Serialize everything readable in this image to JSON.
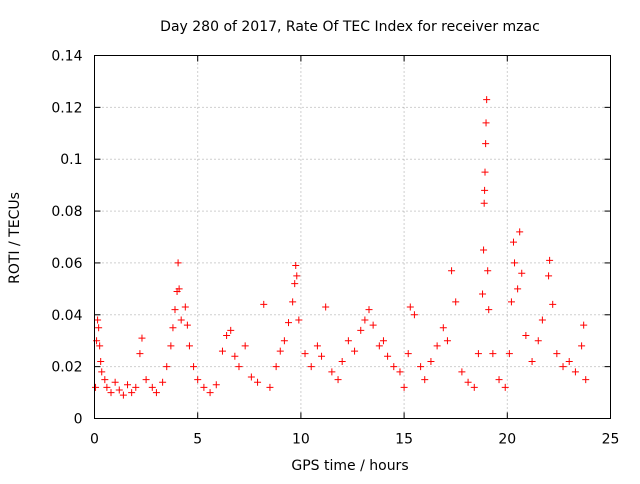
{
  "chart_data": {
    "type": "scatter",
    "title": "Day 280 of 2017, Rate Of TEC Index for receiver mzac",
    "xlabel": "GPS time / hours",
    "ylabel": "ROTI / TECUs",
    "xlim": [
      0,
      25
    ],
    "ylim": [
      0,
      0.14
    ],
    "x_ticks": [
      0,
      5,
      10,
      15,
      20,
      25
    ],
    "x_tick_labels": [
      "0",
      "5",
      "10",
      "15",
      "20",
      "25"
    ],
    "y_ticks": [
      0,
      0.02,
      0.04,
      0.06,
      0.08,
      0.1,
      0.12,
      0.14
    ],
    "y_tick_labels": [
      "0",
      "0.02",
      "0.04",
      "0.06",
      "0.08",
      "0.1",
      "0.12",
      "0.14"
    ],
    "grid": true,
    "marker": "plus",
    "color": "#ff0000",
    "series": [
      {
        "name": "ROTI",
        "points": [
          [
            0.05,
            0.012
          ],
          [
            0.1,
            0.03
          ],
          [
            0.15,
            0.038
          ],
          [
            0.2,
            0.035
          ],
          [
            0.25,
            0.028
          ],
          [
            0.3,
            0.022
          ],
          [
            0.35,
            0.018
          ],
          [
            0.5,
            0.015
          ],
          [
            0.6,
            0.012
          ],
          [
            0.8,
            0.01
          ],
          [
            1.0,
            0.014
          ],
          [
            1.2,
            0.011
          ],
          [
            1.4,
            0.009
          ],
          [
            1.6,
            0.013
          ],
          [
            1.8,
            0.01
          ],
          [
            2.0,
            0.012
          ],
          [
            2.2,
            0.025
          ],
          [
            2.3,
            0.031
          ],
          [
            2.5,
            0.015
          ],
          [
            2.8,
            0.012
          ],
          [
            3.0,
            0.01
          ],
          [
            3.3,
            0.014
          ],
          [
            3.5,
            0.02
          ],
          [
            3.7,
            0.028
          ],
          [
            3.8,
            0.035
          ],
          [
            3.9,
            0.042
          ],
          [
            4.0,
            0.049
          ],
          [
            4.05,
            0.06
          ],
          [
            4.1,
            0.05
          ],
          [
            4.2,
            0.038
          ],
          [
            4.4,
            0.043
          ],
          [
            4.5,
            0.036
          ],
          [
            4.6,
            0.028
          ],
          [
            4.8,
            0.02
          ],
          [
            5.0,
            0.015
          ],
          [
            5.3,
            0.012
          ],
          [
            5.6,
            0.01
          ],
          [
            5.9,
            0.013
          ],
          [
            6.2,
            0.026
          ],
          [
            6.4,
            0.032
          ],
          [
            6.6,
            0.034
          ],
          [
            6.8,
            0.024
          ],
          [
            7.0,
            0.02
          ],
          [
            7.3,
            0.028
          ],
          [
            7.6,
            0.016
          ],
          [
            7.9,
            0.014
          ],
          [
            8.2,
            0.044
          ],
          [
            8.5,
            0.012
          ],
          [
            8.8,
            0.02
          ],
          [
            9.0,
            0.026
          ],
          [
            9.2,
            0.03
          ],
          [
            9.4,
            0.037
          ],
          [
            9.6,
            0.045
          ],
          [
            9.7,
            0.052
          ],
          [
            9.75,
            0.059
          ],
          [
            9.8,
            0.055
          ],
          [
            9.9,
            0.038
          ],
          [
            10.2,
            0.025
          ],
          [
            10.5,
            0.02
          ],
          [
            10.8,
            0.028
          ],
          [
            11.0,
            0.024
          ],
          [
            11.2,
            0.043
          ],
          [
            11.5,
            0.018
          ],
          [
            11.8,
            0.015
          ],
          [
            12.0,
            0.022
          ],
          [
            12.3,
            0.03
          ],
          [
            12.6,
            0.026
          ],
          [
            12.9,
            0.034
          ],
          [
            13.1,
            0.038
          ],
          [
            13.3,
            0.042
          ],
          [
            13.5,
            0.036
          ],
          [
            13.8,
            0.028
          ],
          [
            14.0,
            0.03
          ],
          [
            14.2,
            0.024
          ],
          [
            14.5,
            0.02
          ],
          [
            14.8,
            0.018
          ],
          [
            15.0,
            0.012
          ],
          [
            15.2,
            0.025
          ],
          [
            15.3,
            0.043
          ],
          [
            15.5,
            0.04
          ],
          [
            15.8,
            0.02
          ],
          [
            16.0,
            0.015
          ],
          [
            16.3,
            0.022
          ],
          [
            16.6,
            0.028
          ],
          [
            16.9,
            0.035
          ],
          [
            17.1,
            0.03
          ],
          [
            17.3,
            0.057
          ],
          [
            17.5,
            0.045
          ],
          [
            17.8,
            0.018
          ],
          [
            18.1,
            0.014
          ],
          [
            18.4,
            0.012
          ],
          [
            18.6,
            0.025
          ],
          [
            18.8,
            0.048
          ],
          [
            18.85,
            0.065
          ],
          [
            18.88,
            0.083
          ],
          [
            18.9,
            0.088
          ],
          [
            18.92,
            0.095
          ],
          [
            18.95,
            0.106
          ],
          [
            18.97,
            0.114
          ],
          [
            19.0,
            0.123
          ],
          [
            19.05,
            0.057
          ],
          [
            19.1,
            0.042
          ],
          [
            19.3,
            0.025
          ],
          [
            19.6,
            0.015
          ],
          [
            19.9,
            0.012
          ],
          [
            20.1,
            0.025
          ],
          [
            20.2,
            0.045
          ],
          [
            20.3,
            0.068
          ],
          [
            20.35,
            0.06
          ],
          [
            20.5,
            0.05
          ],
          [
            20.6,
            0.072
          ],
          [
            20.7,
            0.056
          ],
          [
            20.9,
            0.032
          ],
          [
            21.2,
            0.022
          ],
          [
            21.5,
            0.03
          ],
          [
            21.7,
            0.038
          ],
          [
            22.0,
            0.055
          ],
          [
            22.05,
            0.061
          ],
          [
            22.2,
            0.044
          ],
          [
            22.4,
            0.025
          ],
          [
            22.7,
            0.02
          ],
          [
            23.0,
            0.022
          ],
          [
            23.3,
            0.018
          ],
          [
            23.6,
            0.028
          ],
          [
            23.7,
            0.036
          ],
          [
            23.8,
            0.015
          ]
        ]
      }
    ]
  }
}
